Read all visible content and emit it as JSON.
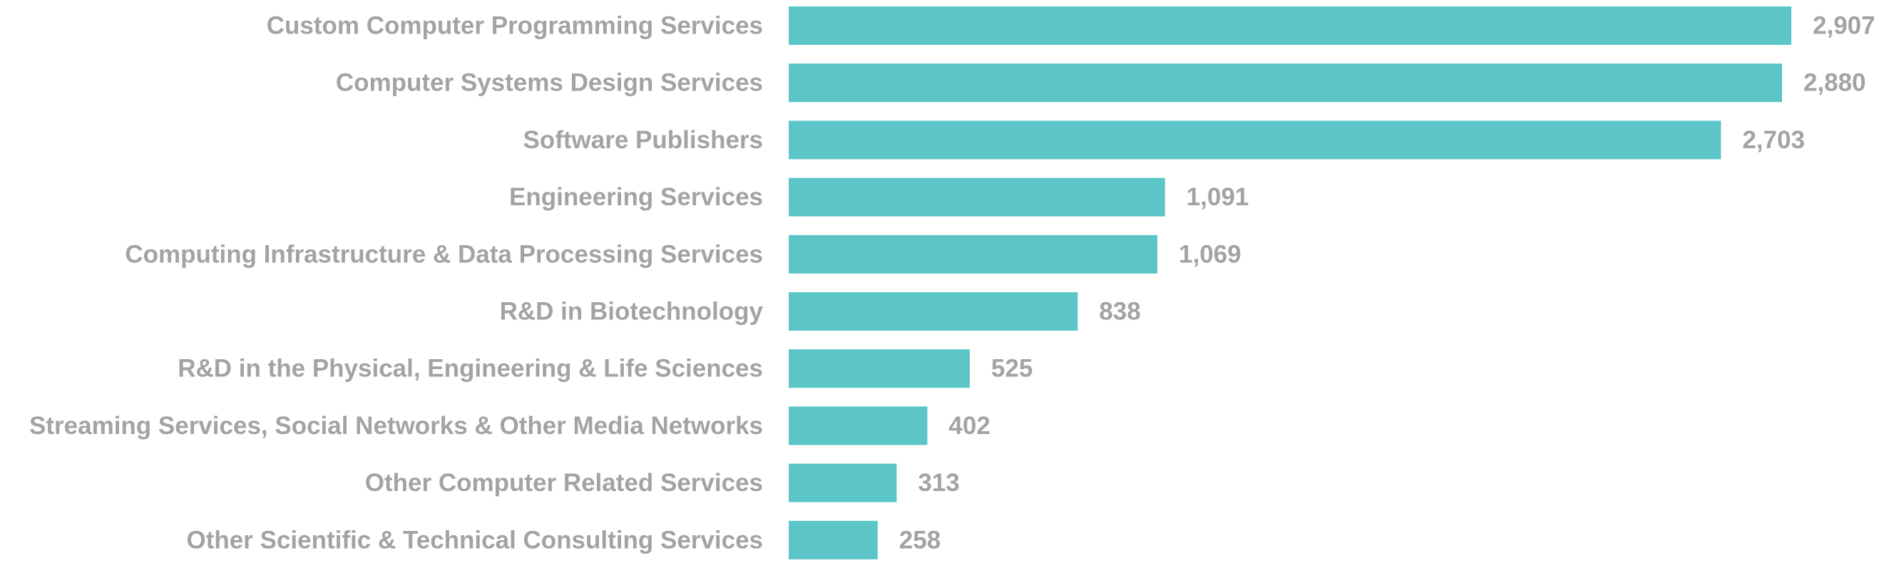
{
  "chart_data": {
    "type": "bar",
    "orientation": "horizontal",
    "title": "",
    "xlabel": "",
    "ylabel": "",
    "categories": [
      "Custom Computer Programming Services",
      "Computer Systems Design Services",
      "Software Publishers",
      "Engineering Services",
      "Computing Infrastructure & Data Processing Services",
      "R&D in Biotechnology",
      "R&D in the Physical, Engineering & Life Sciences",
      "Streaming Services, Social Networks & Other Media Networks",
      "Other Computer Related Services",
      "Other Scientific & Technical Consulting Services"
    ],
    "values": [
      2907,
      2880,
      2703,
      1091,
      1069,
      838,
      525,
      402,
      313,
      258
    ],
    "value_labels": [
      "2,907",
      "2,880",
      "2,703",
      "1,091",
      "1,069",
      "838",
      "525",
      "402",
      "313",
      "258"
    ],
    "xlim": [
      0,
      2907
    ],
    "bar_color": "#5bc5c7",
    "text_color": "#a3a3a3",
    "grid": false,
    "legend": "none"
  }
}
